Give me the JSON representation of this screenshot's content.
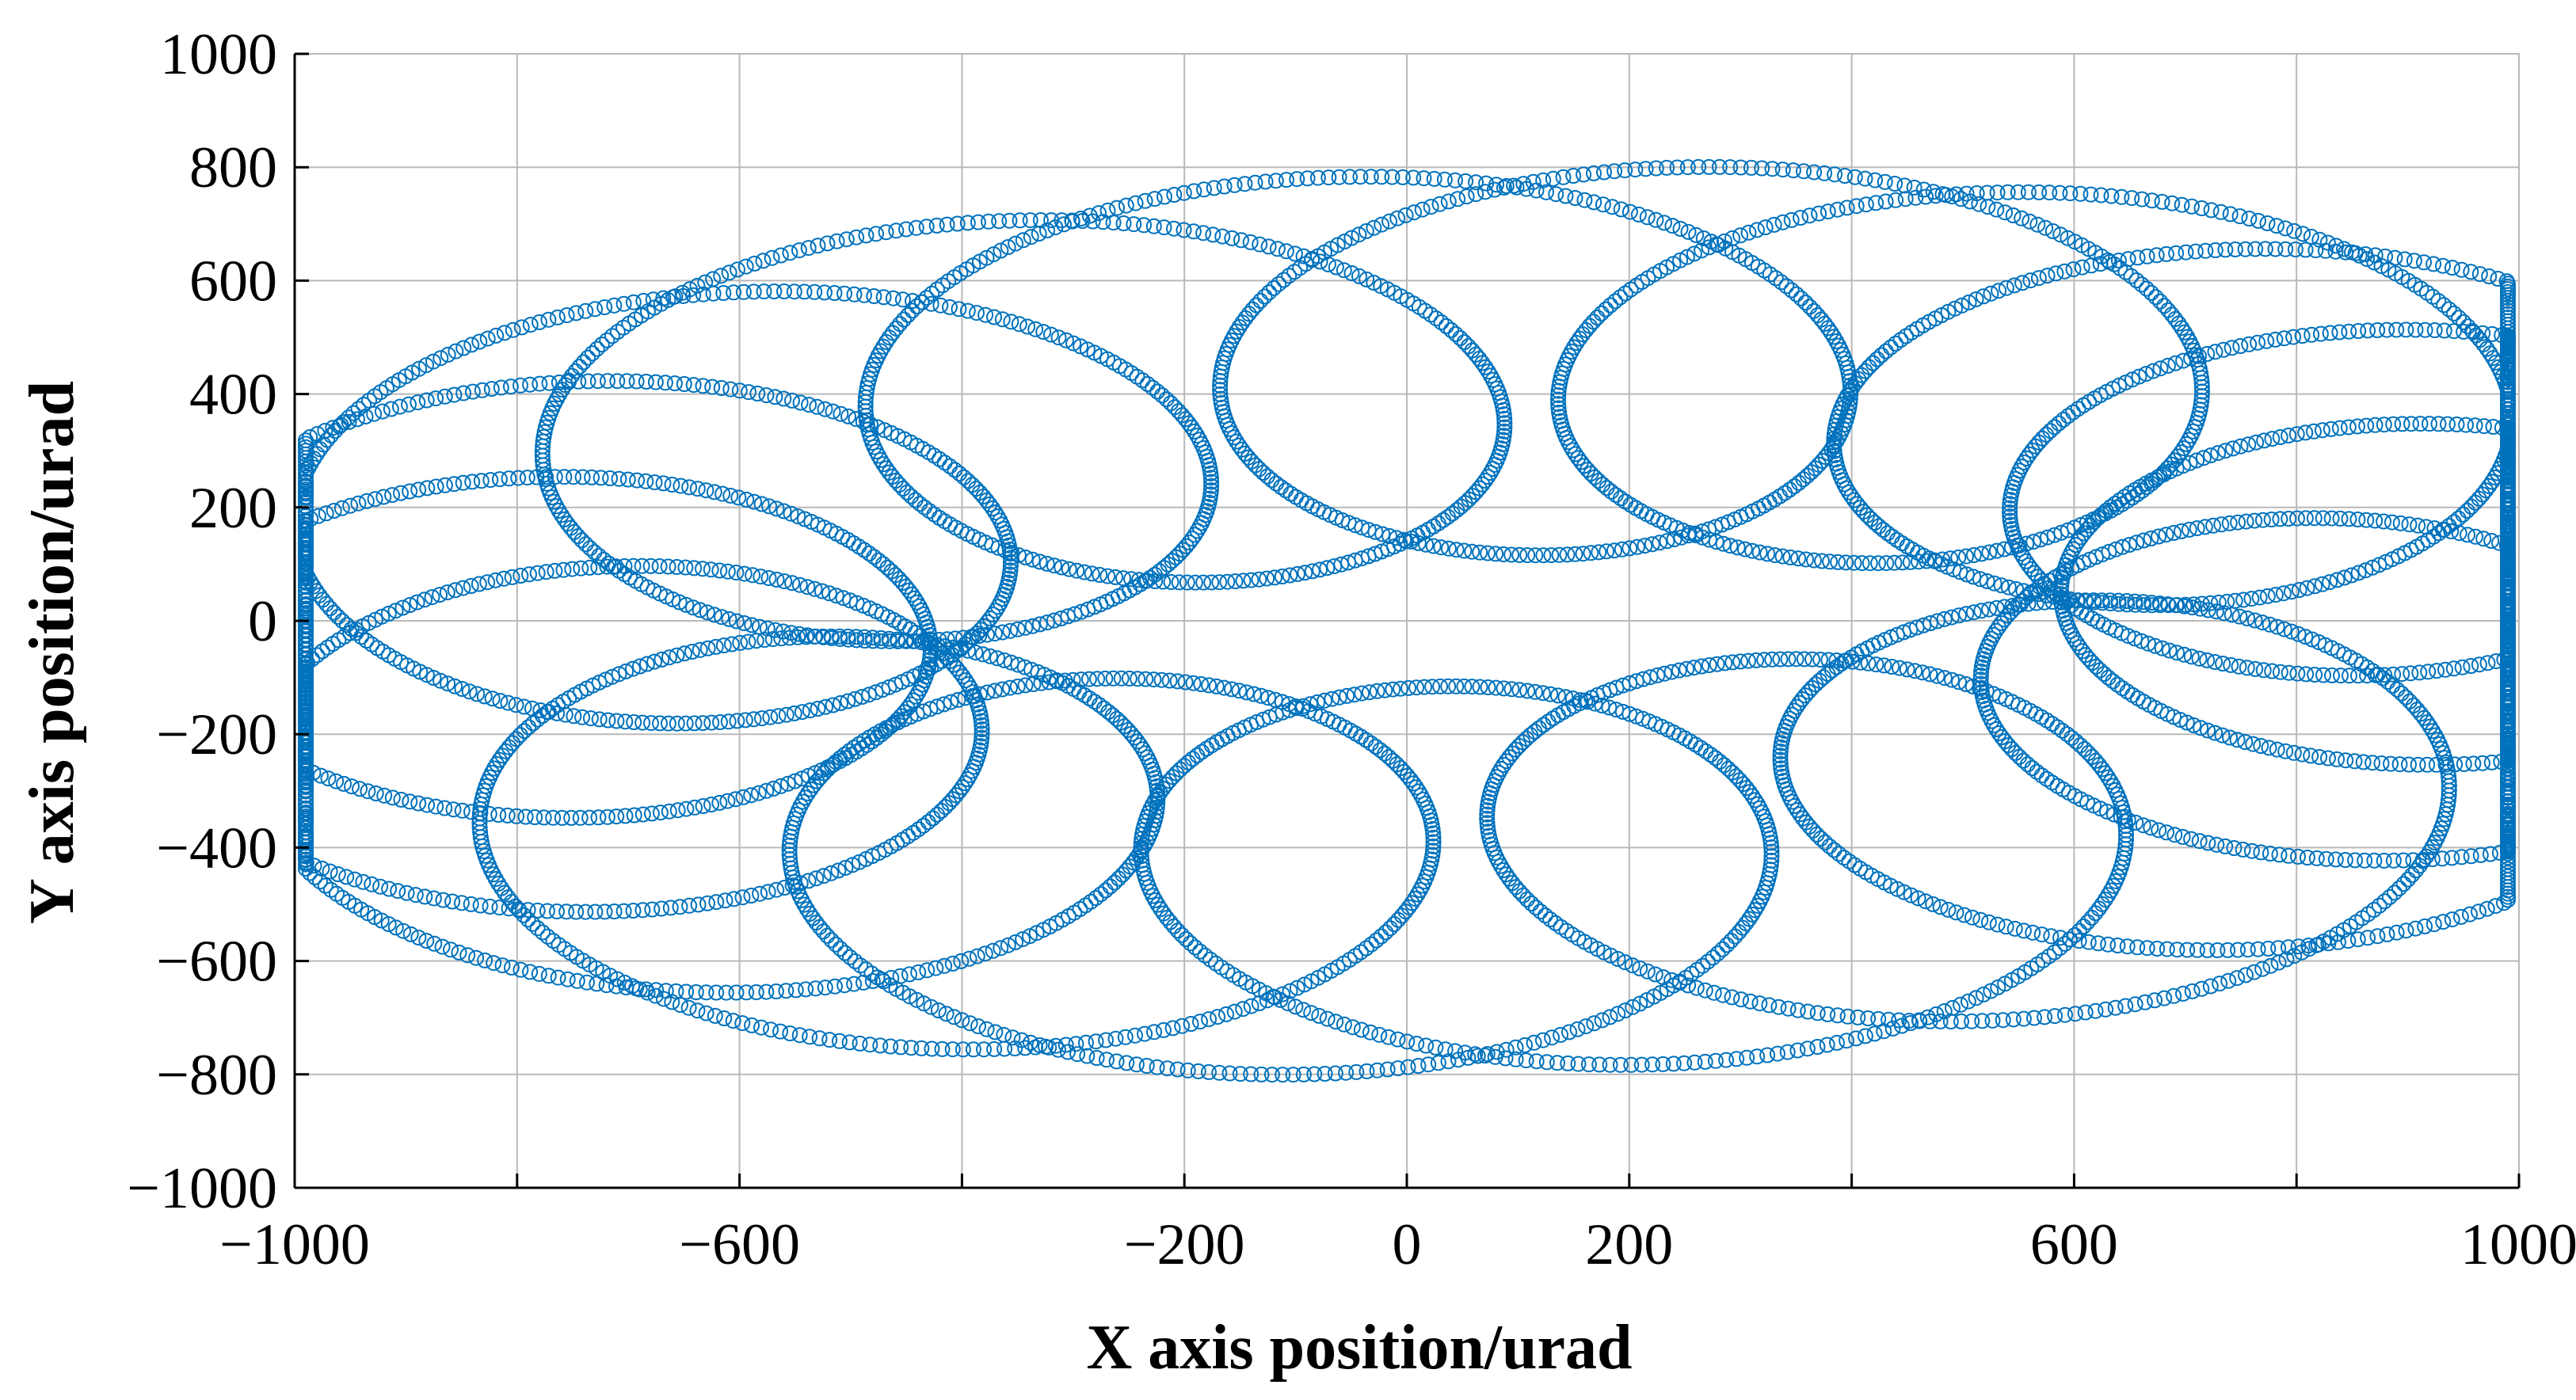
{
  "chart_data": {
    "type": "scatter",
    "title": "",
    "xlabel": "X axis position/urad",
    "ylabel": "Y axis position/urad",
    "xlim": [
      -1000,
      1000
    ],
    "ylim": [
      -1000,
      1000
    ],
    "xticks": [
      -1000,
      -800,
      -600,
      -400,
      -200,
      0,
      200,
      400,
      600,
      800,
      1000
    ],
    "yticks": [
      -1000,
      -800,
      -600,
      -400,
      -200,
      0,
      200,
      400,
      600,
      800,
      1000
    ],
    "xtick_labels": [
      "−1000",
      "",
      "−600",
      "",
      "−200",
      "0",
      "200",
      "",
      "600",
      "",
      "1000"
    ],
    "ytick_labels": [
      "−1000",
      "−800",
      "−600",
      "−400",
      "−200",
      "0",
      "200",
      "400",
      "600",
      "800",
      "1000"
    ],
    "grid": true,
    "marker": "open-circle",
    "marker_color": "#0072BD",
    "series": [
      {
        "pattern": "rosette of rotated elliptical loops (distorted spiral scan)",
        "param_t_range": [
          0,
          6.2832
        ],
        "x_center": 80,
        "y_center": 0,
        "x_amplitude": 860,
        "y_amplitude": 460,
        "x_skew": 0.27,
        "loop_amplitude": 360,
        "loop_frequency": 17,
        "loop_phase_shift": 1.4,
        "loop_y_ratio": 0.95,
        "num_points": 4600,
        "x": [
          -790,
          -560,
          -200,
          210,
          560,
          740,
          560,
          210,
          -200,
          -560
        ],
        "y": [
          0,
          300,
          480,
          480,
          300,
          0,
          -300,
          -480,
          -480,
          -300
        ]
      }
    ]
  }
}
